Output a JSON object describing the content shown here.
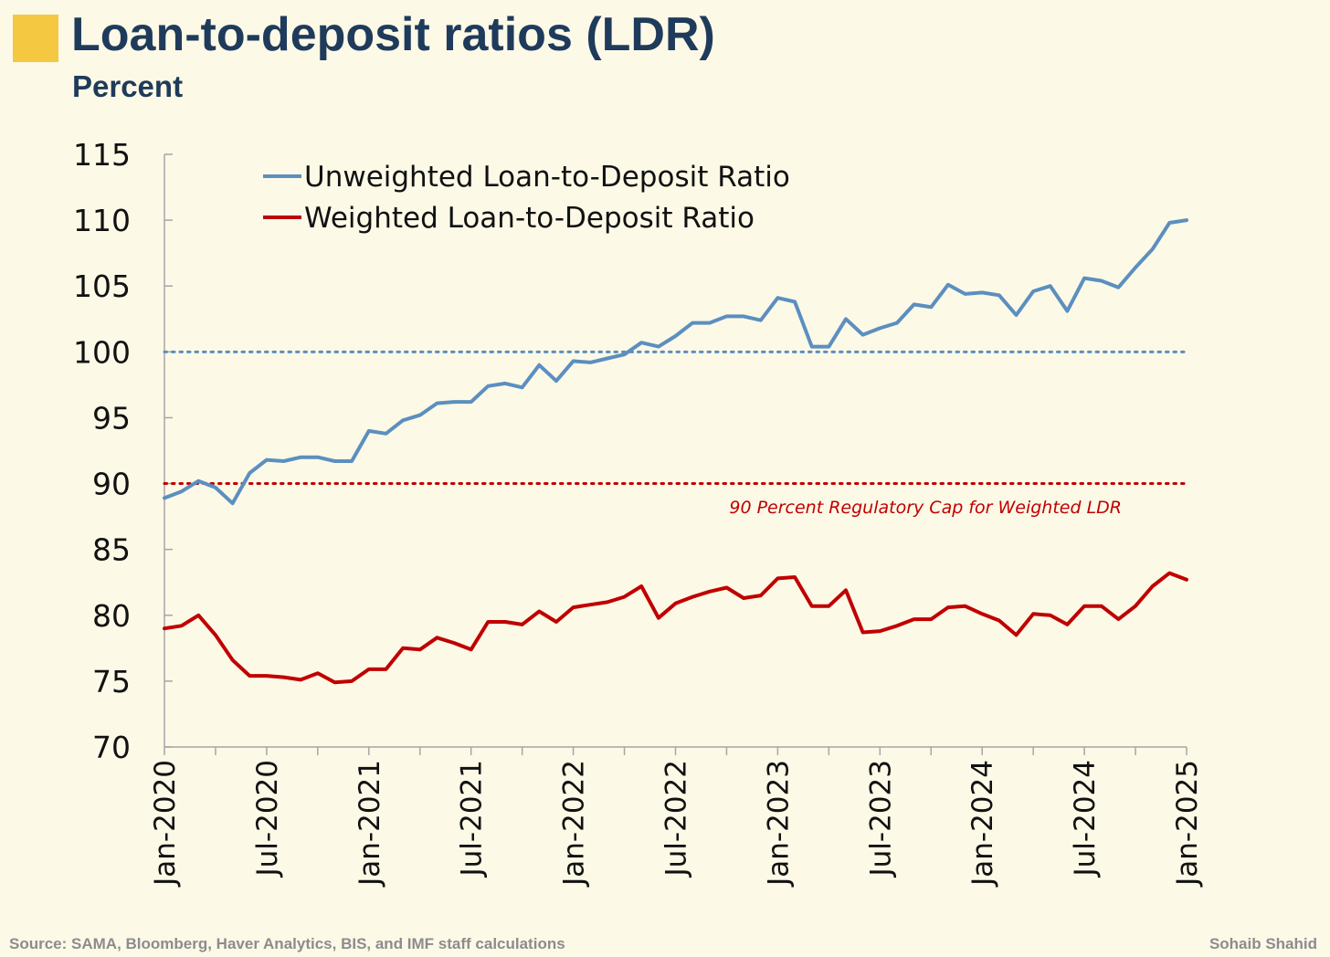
{
  "header": {
    "title": "Loan-to-deposit ratios (LDR)",
    "subtitle": "Percent"
  },
  "footer": {
    "source": "Source: SAMA, Bloomberg, Haver Analytics, BIS, and IMF staff calculations",
    "author": "Sohaib Shahid"
  },
  "colors": {
    "background": "#fdf9e7",
    "accent": "#f5c842",
    "title": "#1f3b5b",
    "unweighted": "#5b8fbf",
    "weighted": "#c00000"
  },
  "chart_data": {
    "type": "line",
    "title": "Loan-to-deposit ratios (LDR)",
    "ylabel": "Percent",
    "xlabel": "",
    "ylim": [
      70,
      115
    ],
    "yticks": [
      70,
      75,
      80,
      85,
      90,
      95,
      100,
      105,
      110,
      115
    ],
    "xlim": [
      0,
      60
    ],
    "xticks": [
      {
        "x": 0,
        "label": "Jan-2020"
      },
      {
        "x": 6,
        "label": "Jul-2020"
      },
      {
        "x": 12,
        "label": "Jan-2021"
      },
      {
        "x": 18,
        "label": "Jul-2021"
      },
      {
        "x": 24,
        "label": "Jan-2022"
      },
      {
        "x": 30,
        "label": "Jul-2022"
      },
      {
        "x": 36,
        "label": "Jan-2023"
      },
      {
        "x": 42,
        "label": "Jul-2023"
      },
      {
        "x": 48,
        "label": "Jan-2024"
      },
      {
        "x": 54,
        "label": "Jul-2024"
      },
      {
        "x": 60,
        "label": "Jan-2025"
      }
    ],
    "x_unit": "months since Jan-2020",
    "legend_position": "top-left",
    "series": [
      {
        "name": "Unweighted Loan-to-Deposit Ratio",
        "color": "#5b8fbf",
        "x": [
          0,
          1,
          2,
          3,
          4,
          5,
          6,
          7,
          8,
          9,
          10,
          11,
          12,
          13,
          14,
          15,
          16,
          17,
          18,
          19,
          20,
          21,
          22,
          23,
          24,
          25,
          26,
          27,
          28,
          29,
          30,
          31,
          32,
          33,
          34,
          35,
          36,
          37,
          38,
          39,
          40,
          41,
          42,
          43,
          44,
          45,
          46,
          47,
          48,
          49,
          50,
          51,
          52,
          53,
          54,
          55,
          56,
          57,
          58,
          59,
          60
        ],
        "values": [
          88.9,
          89.4,
          90.2,
          89.7,
          88.5,
          90.8,
          91.8,
          91.7,
          92.0,
          92.0,
          91.7,
          91.7,
          94.0,
          93.8,
          94.8,
          95.2,
          96.1,
          96.2,
          96.2,
          97.4,
          97.6,
          97.3,
          99.0,
          97.8,
          99.3,
          99.2,
          99.5,
          99.8,
          100.7,
          100.4,
          101.2,
          102.2,
          102.2,
          102.7,
          102.7,
          102.4,
          104.1,
          103.8,
          100.4,
          100.4,
          102.5,
          101.3,
          101.8,
          102.2,
          103.6,
          103.4,
          105.1,
          104.4,
          104.5,
          104.3,
          102.8,
          104.6,
          105.0,
          103.1,
          105.6,
          105.4,
          104.9,
          106.4,
          107.8,
          109.8,
          110.0
        ]
      },
      {
        "name": "Weighted Loan-to-Deposit Ratio",
        "color": "#c00000",
        "x": [
          0,
          1,
          2,
          3,
          4,
          5,
          6,
          7,
          8,
          9,
          10,
          11,
          12,
          13,
          14,
          15,
          16,
          17,
          18,
          19,
          20,
          21,
          22,
          23,
          24,
          25,
          26,
          27,
          28,
          29,
          30,
          31,
          32,
          33,
          34,
          35,
          36,
          37,
          38,
          39,
          40,
          41,
          42,
          43,
          44,
          45,
          46,
          47,
          48,
          49,
          50,
          51,
          52,
          53,
          54,
          55,
          56,
          57,
          58,
          59,
          60
        ],
        "values": [
          79.0,
          79.2,
          80.0,
          78.5,
          76.6,
          75.4,
          75.4,
          75.3,
          75.1,
          75.6,
          74.9,
          75.0,
          75.9,
          75.9,
          77.5,
          77.4,
          78.3,
          77.9,
          77.4,
          79.5,
          79.5,
          79.3,
          80.3,
          79.5,
          80.6,
          80.8,
          81.0,
          81.4,
          82.2,
          79.8,
          80.9,
          81.4,
          81.8,
          82.1,
          81.3,
          81.5,
          82.8,
          82.9,
          80.7,
          80.7,
          81.9,
          78.7,
          78.8,
          79.2,
          79.7,
          79.7,
          80.6,
          80.7,
          80.1,
          79.6,
          78.5,
          80.1,
          80.0,
          79.3,
          80.7,
          80.7,
          79.7,
          80.7,
          82.2,
          83.2,
          82.7
        ]
      }
    ],
    "reference_lines": [
      {
        "y": 100,
        "color": "#5b8fbf",
        "style": "dotted",
        "label": ""
      },
      {
        "y": 90,
        "color": "#c00000",
        "style": "dotted",
        "label": "90 Percent Regulatory Cap for Weighted LDR"
      }
    ]
  }
}
